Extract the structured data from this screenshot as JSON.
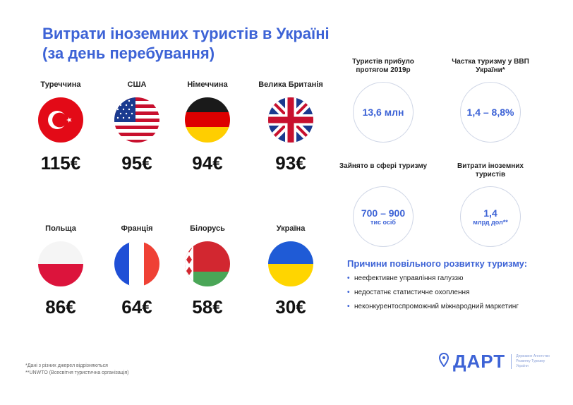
{
  "title_line1": "Витрати іноземних туристів в Україні",
  "title_line2": "(за день перебування)",
  "countries": [
    {
      "name": "Туреччина",
      "value": "115€",
      "flag_icon": "turkey-flag-icon"
    },
    {
      "name": "США",
      "value": "95€",
      "flag_icon": "usa-flag-icon"
    },
    {
      "name": "Німеччина",
      "value": "94€",
      "flag_icon": "germany-flag-icon"
    },
    {
      "name": "Велика Британія",
      "value": "93€",
      "flag_icon": "uk-flag-icon"
    },
    {
      "name": "Польща",
      "value": "86€",
      "flag_icon": "poland-flag-icon"
    },
    {
      "name": "Франція",
      "value": "64€",
      "flag_icon": "france-flag-icon"
    },
    {
      "name": "Білорусь",
      "value": "58€",
      "flag_icon": "belarus-flag-icon"
    },
    {
      "name": "Україна",
      "value": "30€",
      "flag_icon": "ukraine-flag-icon"
    }
  ],
  "stats": [
    {
      "label": "Туристів прибуло протягом 2019р",
      "value": "13,6 млн",
      "sub": ""
    },
    {
      "label": "Частка туризму у ВВП України*",
      "value": "1,4 – 8,8%",
      "sub": ""
    },
    {
      "label": "Зайнято в сфері туризму",
      "value": "700 – 900",
      "sub": "тис осіб"
    },
    {
      "label": "Витрати іноземних туристів",
      "value": "1,4",
      "sub": "млрд дол**"
    }
  ],
  "reasons": {
    "title": "Причини повільного розвитку туризму:",
    "items": [
      "неефективне управління галуззю",
      "недостатнє статистичне охоплення",
      "неконкурентоспроможний міжнародний маркетинг"
    ]
  },
  "footnotes": [
    "*Дані з різних джерел відрізняються",
    "**UNWTO (Всесвітня туристична організація)"
  ],
  "logo": {
    "word": "ДАРТ",
    "sub": "Державне Агентство Розвитку Туризму України"
  },
  "colors": {
    "accent": "#3d63d6",
    "circle_border": "#cfd6e6"
  }
}
